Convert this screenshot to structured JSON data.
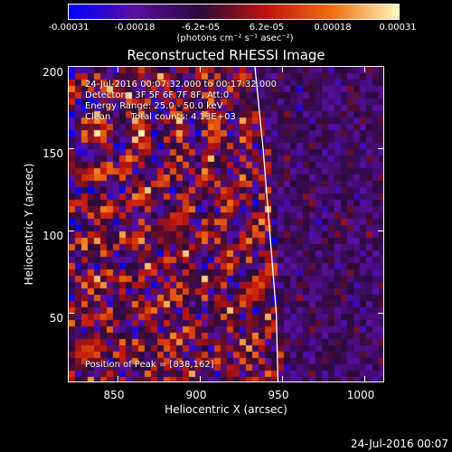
{
  "colorbar": {
    "ticks": [
      "-0.00031",
      "-0.00018",
      "-6.2e-05",
      "6.2e-05",
      "0.00018",
      "0.00031"
    ],
    "unit": "(photons cm⁻² s⁻¹ asec⁻²)",
    "colors": [
      "#0000ff",
      "#5a0fa0",
      "#2a0a3a",
      "#c0140f",
      "#f07010",
      "#fff8c0"
    ]
  },
  "chart_data": {
    "type": "heatmap",
    "title": "Reconstructed RHESSI Image",
    "xlabel": "Heliocentric X (arcsec)",
    "ylabel": "Heliocentric Y (arcsec)",
    "xlim": [
      820,
      1012
    ],
    "ylim": [
      8,
      200
    ],
    "x_ticks": [
      850,
      900,
      950,
      1000
    ],
    "y_ticks": [
      50,
      100,
      150,
      200
    ],
    "color_range": [
      -0.00031,
      0.00031
    ],
    "peak": [
      838,
      162
    ],
    "limb_curve": [
      [
        933,
        200
      ],
      [
        938,
        150
      ],
      [
        942,
        100
      ],
      [
        946,
        50
      ],
      [
        947,
        8
      ]
    ]
  },
  "annotations": {
    "time_range": "24-Jul-2016 00:07:32.000 to 00:17:32.000",
    "detectors": "Detectors: 3F 5F 6F 7F 8F, Att:0",
    "energy": "Energy Range: 25.0 - 50.0 keV",
    "clean": "Clean       Total counts: 4.13E+03",
    "peak_label": "Position of Peak = [838,162]"
  },
  "footer": "24-Jul-2016 00:07"
}
